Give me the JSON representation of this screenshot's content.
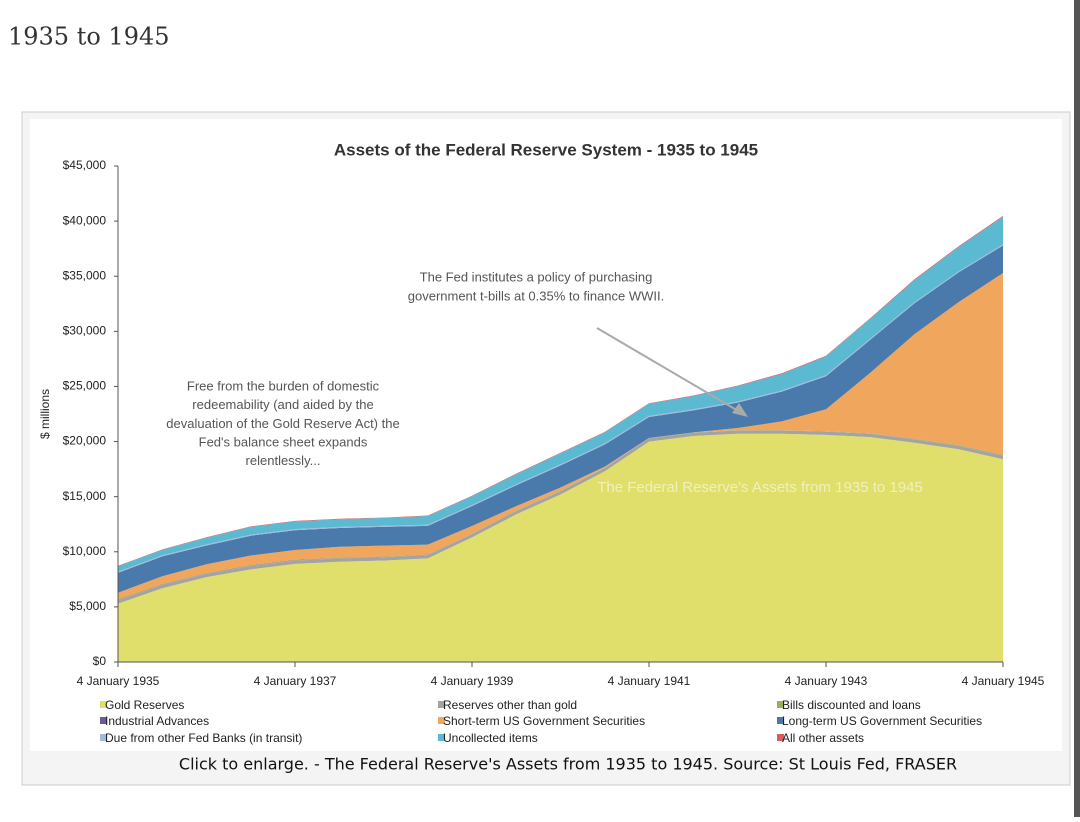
{
  "page": {
    "heading": "1935 to 1945",
    "caption": "Click to enlarge. - The Federal Reserve's Assets from 1935 to 1945. Source: St Louis Fed, FRASER"
  },
  "chart_data": {
    "type": "stacked-area",
    "title": "Assets of the Federal Reserve System - 1935 to 1945",
    "y_label": "$ millions",
    "watermark": "The Federal Reserve's Assets from 1935 to 1945",
    "annotations": [
      {
        "lines": [
          "Free from the burden of domestic",
          "redeemability (and aided by the",
          "devaluation of the Gold Reserve Act) the",
          "Fed's balance sheet expands",
          "relentlessly..."
        ]
      },
      {
        "lines": [
          "The Fed institutes a policy of purchasing",
          "government t-bills at 0.35% to finance WWII."
        ]
      }
    ],
    "x": [
      1935,
      1935.5,
      1936,
      1936.5,
      1937,
      1937.5,
      1938,
      1938.5,
      1939,
      1939.5,
      1940,
      1940.5,
      1941,
      1941.5,
      1942,
      1942.5,
      1943,
      1943.5,
      1944,
      1944.5,
      1945
    ],
    "xlim": [
      1935,
      1945
    ],
    "xticks": [
      {
        "value": 1935,
        "label": "4 January 1935"
      },
      {
        "value": 1937,
        "label": "4 January 1937"
      },
      {
        "value": 1939,
        "label": "4 January 1939"
      },
      {
        "value": 1941,
        "label": "4 January 1941"
      },
      {
        "value": 1943,
        "label": "4 January 1943"
      },
      {
        "value": 1945,
        "label": "4 January 1945"
      }
    ],
    "ylim": [
      0,
      45000
    ],
    "yticks": [
      {
        "value": 0,
        "label": "$0"
      },
      {
        "value": 5000,
        "label": "$5,000"
      },
      {
        "value": 10000,
        "label": "$10,000"
      },
      {
        "value": 15000,
        "label": "$15,000"
      },
      {
        "value": 20000,
        "label": "$20,000"
      },
      {
        "value": 25000,
        "label": "$25,000"
      },
      {
        "value": 30000,
        "label": "$30,000"
      },
      {
        "value": 35000,
        "label": "$35,000"
      },
      {
        "value": 40000,
        "label": "$40,000"
      },
      {
        "value": 45000,
        "label": "$45,000"
      }
    ],
    "series": [
      {
        "name": "Gold Reserves",
        "color": "#e0df6c",
        "values": [
          5300,
          6700,
          7700,
          8400,
          8900,
          9100,
          9200,
          9400,
          11300,
          13400,
          15200,
          17300,
          20000,
          20500,
          20700,
          20700,
          20600,
          20400,
          19900,
          19300,
          18400
        ]
      },
      {
        "name": "Reserves other than gold",
        "color": "#a3a3a3",
        "values": [
          300,
          300,
          300,
          300,
          300,
          300,
          300,
          300,
          300,
          300,
          300,
          300,
          300,
          300,
          300,
          300,
          300,
          300,
          300,
          300,
          300
        ]
      },
      {
        "name": "Bills discounted and loans",
        "color": "#9bb05c",
        "values": [
          60,
          50,
          40,
          30,
          30,
          40,
          40,
          30,
          20,
          20,
          20,
          20,
          20,
          20,
          20,
          20,
          20,
          30,
          40,
          50,
          80
        ]
      },
      {
        "name": "Industrial Advances",
        "color": "#6b5b9b",
        "values": [
          30,
          30,
          30,
          30,
          30,
          20,
          20,
          20,
          20,
          20,
          10,
          10,
          10,
          10,
          10,
          10,
          10,
          10,
          10,
          10,
          10
        ]
      },
      {
        "name": "Short-term US Government Securities",
        "color": "#f0a65c",
        "values": [
          600,
          700,
          800,
          900,
          900,
          1000,
          1000,
          900,
          700,
          400,
          300,
          100,
          0,
          0,
          200,
          800,
          2000,
          5500,
          9500,
          13000,
          16500
        ]
      },
      {
        "name": "Long-term US Government Securities",
        "color": "#4a79ab",
        "values": [
          1800,
          1800,
          1700,
          1800,
          1800,
          1700,
          1700,
          1700,
          1800,
          1900,
          2000,
          2000,
          1900,
          2000,
          2300,
          2700,
          3000,
          3000,
          2800,
          2700,
          2500
        ]
      },
      {
        "name": "Due from other Fed Banks (in transit)",
        "color": "#a2b9d9",
        "values": [
          100,
          100,
          100,
          100,
          100,
          100,
          100,
          100,
          100,
          100,
          100,
          100,
          100,
          100,
          100,
          100,
          100,
          100,
          100,
          100,
          100
        ]
      },
      {
        "name": "Uncollected items",
        "color": "#5bb9d1",
        "values": [
          500,
          500,
          600,
          700,
          700,
          700,
          700,
          800,
          800,
          900,
          1000,
          1000,
          1100,
          1200,
          1400,
          1500,
          1700,
          1800,
          2000,
          2200,
          2500
        ]
      },
      {
        "name": "All other assets",
        "color": "#d95b5b",
        "values": [
          40,
          40,
          40,
          40,
          40,
          40,
          40,
          40,
          40,
          50,
          50,
          50,
          50,
          50,
          50,
          60,
          60,
          60,
          70,
          70,
          80
        ]
      }
    ]
  }
}
